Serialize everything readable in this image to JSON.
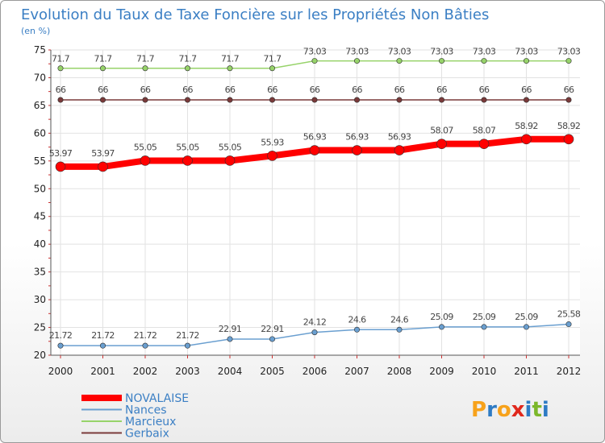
{
  "chart_data": {
    "type": "line",
    "title": "Evolution du Taux de Taxe Foncière sur les Propriétés Non Bâties",
    "subtitle": "(en %)",
    "xlabel": "",
    "ylabel": "",
    "ylim": [
      20,
      75
    ],
    "yticks": [
      20,
      25,
      30,
      35,
      40,
      45,
      50,
      55,
      60,
      65,
      70,
      75
    ],
    "categories": [
      "2000",
      "2001",
      "2002",
      "2003",
      "2004",
      "2005",
      "2006",
      "2007",
      "2008",
      "2009",
      "2010",
      "2011",
      "2012"
    ],
    "grid": true,
    "legend": "bottom-left",
    "series": [
      {
        "name": "Marcieux",
        "color": "#97d36a",
        "values": [
          71.7,
          71.7,
          71.7,
          71.7,
          71.7,
          71.7,
          73.03,
          73.03,
          73.03,
          73.03,
          73.03,
          73.03,
          73.03
        ],
        "labels": [
          "71.7",
          "71.7",
          "71.7",
          "71.7",
          "71.7",
          "71.7",
          "73.03",
          "73.03",
          "73.03",
          "73.03",
          "73.03",
          "73.03",
          "73.03"
        ]
      },
      {
        "name": "Gerbaix",
        "color": "#7a3a3a",
        "values": [
          66,
          66,
          66,
          66,
          66,
          66,
          66,
          66,
          66,
          66,
          66,
          66,
          66
        ],
        "labels": [
          "66",
          "66",
          "66",
          "66",
          "66",
          "66",
          "66",
          "66",
          "66",
          "66",
          "66",
          "66",
          "66"
        ]
      },
      {
        "name": "NOVALAISE",
        "color": "#ff0000",
        "values": [
          53.97,
          53.97,
          55.05,
          55.05,
          55.05,
          55.93,
          56.93,
          56.93,
          56.93,
          58.07,
          58.07,
          58.92,
          58.92
        ],
        "labels": [
          "53.97",
          "53.97",
          "55.05",
          "55.05",
          "55.05",
          "55.93",
          "56.93",
          "56.93",
          "56.93",
          "58.07",
          "58.07",
          "58.92",
          "58.92"
        ]
      },
      {
        "name": "Nances",
        "color": "#6a9fd0",
        "values": [
          21.72,
          21.72,
          21.72,
          21.72,
          22.91,
          22.91,
          24.12,
          24.6,
          24.6,
          25.09,
          25.09,
          25.09,
          25.58
        ],
        "labels": [
          "21.72",
          "21.72",
          "21.72",
          "21.72",
          "22.91",
          "22.91",
          "24.12",
          "24.6",
          "24.6",
          "25.09",
          "25.09",
          "25.09",
          "25.58"
        ]
      }
    ],
    "legend_order": [
      "NOVALAISE",
      "Nances",
      "Marcieux",
      "Gerbaix"
    ]
  },
  "logo_text": "Proxiti"
}
